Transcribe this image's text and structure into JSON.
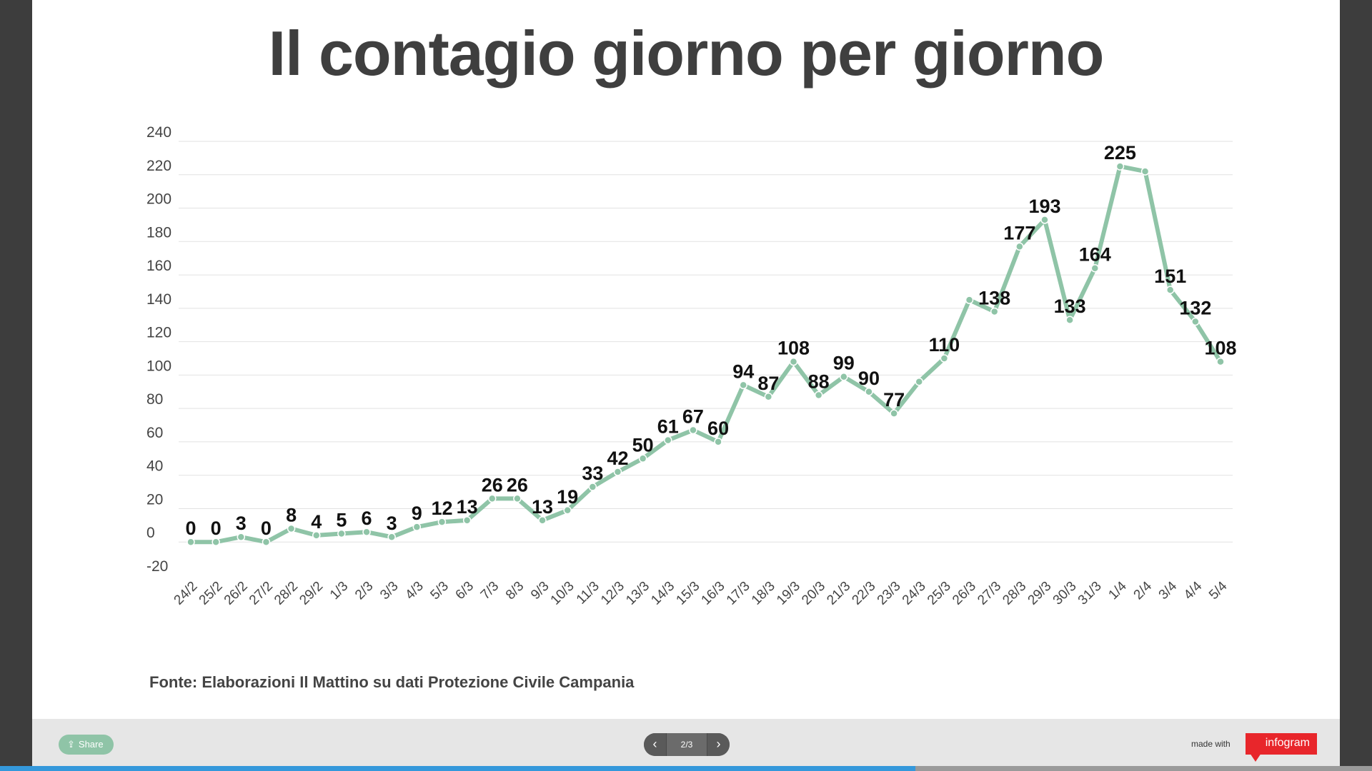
{
  "chart_data": {
    "type": "line",
    "title": "Il contagio giorno per giorno",
    "source": "Fonte: Elaborazioni Il Mattino su dati Protezione Civile Campania",
    "categories": [
      "24/2",
      "25/2",
      "26/2",
      "27/2",
      "28/2",
      "29/2",
      "1/3",
      "2/3",
      "3/3",
      "4/3",
      "5/3",
      "6/3",
      "7/3",
      "8/3",
      "9/3",
      "10/3",
      "11/3",
      "12/3",
      "13/3",
      "14/3",
      "15/3",
      "16/3",
      "17/3",
      "18/3",
      "19/3",
      "20/3",
      "21/3",
      "22/3",
      "23/3",
      "24/3",
      "25/3",
      "26/3",
      "27/3",
      "28/3",
      "29/3",
      "30/3",
      "31/3",
      "1/4",
      "2/4",
      "3/4",
      "4/4",
      "5/4"
    ],
    "values": [
      0,
      0,
      3,
      0,
      8,
      4,
      5,
      6,
      3,
      9,
      12,
      13,
      26,
      26,
      13,
      19,
      33,
      42,
      50,
      61,
      67,
      60,
      94,
      87,
      108,
      88,
      99,
      90,
      77,
      96,
      110,
      145,
      138,
      177,
      193,
      133,
      164,
      225,
      222,
      151,
      132,
      108
    ],
    "labels": [
      "0",
      "0",
      "3",
      "0",
      "8",
      "4",
      "5",
      "6",
      "3",
      "9",
      "12",
      "13",
      "26",
      "26",
      "13",
      "19",
      "33",
      "42",
      "50",
      "61",
      "67",
      "60",
      "94",
      "87",
      "108",
      "88",
      "99",
      "90",
      "77",
      "",
      "110",
      "",
      "138",
      "177",
      "193",
      "133",
      "164",
      "225",
      "",
      "151",
      "132",
      "108"
    ],
    "yticks": [
      -20,
      0,
      20,
      40,
      60,
      80,
      100,
      120,
      140,
      160,
      180,
      200,
      220,
      240
    ],
    "ylim": [
      -20,
      240
    ],
    "grid": true,
    "line_color": "#8fc4a7"
  },
  "footer": {
    "share_label": "Share",
    "page_indicator": "2/3",
    "made_with": "made with",
    "brand": "infogram",
    "progress": 0.667
  }
}
